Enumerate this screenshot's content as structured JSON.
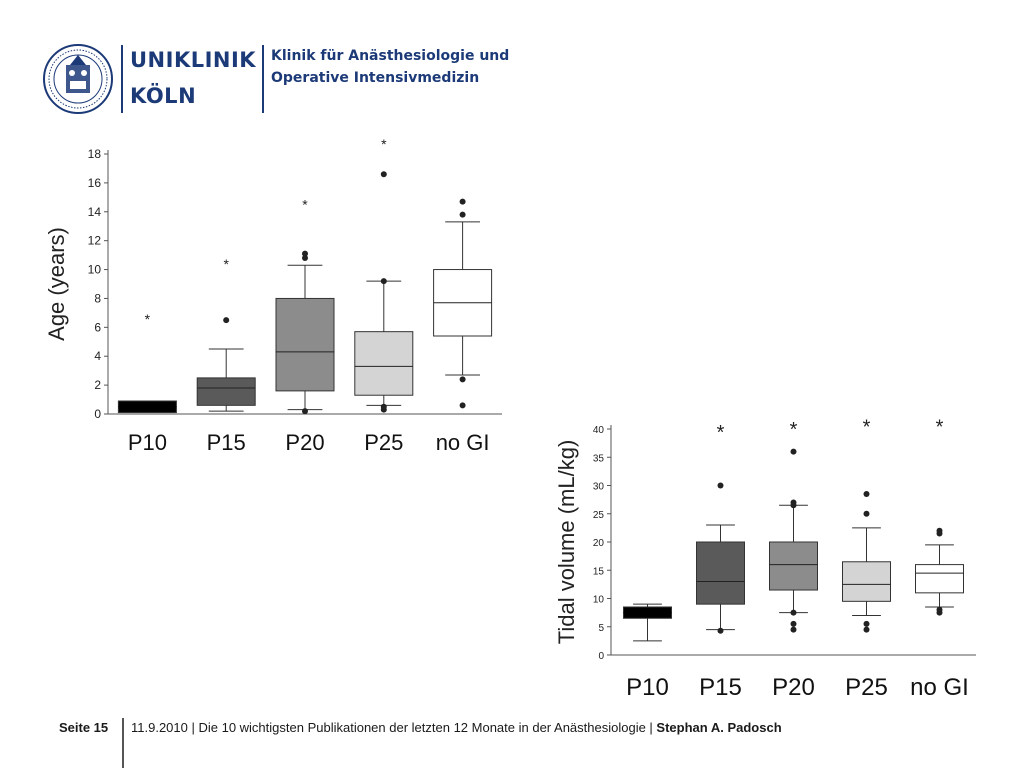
{
  "header": {
    "brand_line1": "UNIKLINIK",
    "brand_line2": "KÖLN",
    "clinic_line1": "Klinik für Anästhesiologie und",
    "clinic_line2": "Operative Intensivmedizin",
    "brand_color": "#1c3a78",
    "logo_icon": "university-seal-icon"
  },
  "footer": {
    "page_label": "Seite 15",
    "text": "11.9.2010 | Die 10 wichtigsten Publikationen der letzten 12 Monate in der Anästhesiologie | ",
    "author": "Stephan A. Padosch"
  },
  "chart_data": [
    {
      "type": "box",
      "ylabel": "Age (years)",
      "xlabel": "",
      "ylim": [
        0,
        18
      ],
      "yticks": [
        0,
        2,
        4,
        6,
        8,
        10,
        12,
        14,
        16,
        18
      ],
      "grid": false,
      "categories": [
        "P10",
        "P15",
        "P20",
        "P25",
        "no GI"
      ],
      "boxes": [
        {
          "whisker_low": 0.1,
          "q1": 0.1,
          "median": 0.5,
          "q3": 0.9,
          "whisker_high": 0.9,
          "outliers": [],
          "asterisk": 6.8,
          "fill": "#000000"
        },
        {
          "whisker_low": 0.2,
          "q1": 0.6,
          "median": 1.8,
          "q3": 2.5,
          "whisker_high": 4.5,
          "outliers": [
            6.5
          ],
          "asterisk": 10.6,
          "fill": "#5a5a5a"
        },
        {
          "whisker_low": 0.3,
          "q1": 1.6,
          "median": 4.3,
          "q3": 8.0,
          "whisker_high": 10.3,
          "outliers": [
            0.2,
            10.8,
            11.1
          ],
          "asterisk": 14.7,
          "fill": "#8c8c8c"
        },
        {
          "whisker_low": 0.6,
          "q1": 1.3,
          "median": 3.3,
          "q3": 5.7,
          "whisker_high": 9.2,
          "outliers": [
            0.3,
            0.5,
            9.2,
            16.6
          ],
          "asterisk": 18.9,
          "fill": "#d4d4d4"
        },
        {
          "whisker_low": 2.7,
          "q1": 5.4,
          "median": 7.7,
          "q3": 10.0,
          "whisker_high": 13.3,
          "outliers": [
            0.6,
            2.4,
            13.8,
            14.7
          ],
          "asterisk": null,
          "fill": "#ffffff"
        }
      ]
    },
    {
      "type": "box",
      "ylabel": "Tidal volume (mL/kg)",
      "xlabel": "",
      "ylim": [
        0,
        40
      ],
      "yticks": [
        0,
        5,
        10,
        15,
        20,
        25,
        30,
        35,
        40
      ],
      "grid": false,
      "categories": [
        "P10",
        "P15",
        "P20",
        "P25",
        "no GI"
      ],
      "boxes": [
        {
          "whisker_low": 2.5,
          "q1": 6.5,
          "median": 7.5,
          "q3": 8.5,
          "whisker_high": 9.0,
          "outliers": [],
          "asterisk": null,
          "fill": "#000000"
        },
        {
          "whisker_low": 4.5,
          "q1": 9.0,
          "median": 13.0,
          "q3": 20.0,
          "whisker_high": 23.0,
          "outliers": [
            4.3,
            30.0
          ],
          "asterisk": 40.0,
          "fill": "#5a5a5a"
        },
        {
          "whisker_low": 7.5,
          "q1": 11.5,
          "median": 16.0,
          "q3": 20.0,
          "whisker_high": 26.5,
          "outliers": [
            4.5,
            5.5,
            7.5,
            26.5,
            27.0,
            36.0
          ],
          "asterisk": 40.5,
          "fill": "#8c8c8c"
        },
        {
          "whisker_low": 7.0,
          "q1": 9.5,
          "median": 12.5,
          "q3": 16.5,
          "whisker_high": 22.5,
          "outliers": [
            4.5,
            5.5,
            25.0,
            28.5
          ],
          "asterisk": 41.0,
          "fill": "#d4d4d4"
        },
        {
          "whisker_low": 8.5,
          "q1": 11.0,
          "median": 14.5,
          "q3": 16.0,
          "whisker_high": 19.5,
          "outliers": [
            7.5,
            8.0,
            21.5,
            22.0
          ],
          "asterisk": 41.0,
          "fill": "#ffffff"
        }
      ]
    }
  ]
}
